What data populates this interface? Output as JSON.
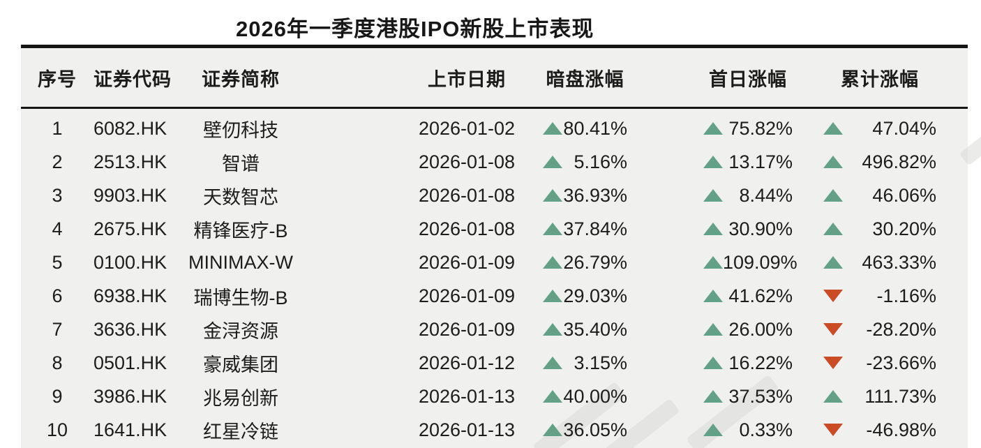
{
  "title": "2026年一季度港股IPO新股上市表现",
  "chart_data": {
    "type": "table",
    "title": "2026年一季度港股IPO新股上市表现",
    "columns": [
      "序号",
      "证券代码",
      "证券简称",
      "上市日期",
      "暗盘涨幅",
      "首日涨幅",
      "累计涨幅"
    ],
    "rows": [
      {
        "no": "1",
        "code": "6082.HK",
        "name": "壁仞科技",
        "date": "2026-01-02",
        "dark_gain": "80.41%",
        "first_day_gain": "75.82%",
        "cumulative_gain": "47.04%"
      },
      {
        "no": "2",
        "code": "2513.HK",
        "name": "智谱",
        "date": "2026-01-08",
        "dark_gain": "5.16%",
        "first_day_gain": "13.17%",
        "cumulative_gain": "496.82%"
      },
      {
        "no": "3",
        "code": "9903.HK",
        "name": "天数智芯",
        "date": "2026-01-08",
        "dark_gain": "36.93%",
        "first_day_gain": "8.44%",
        "cumulative_gain": "46.06%"
      },
      {
        "no": "4",
        "code": "2675.HK",
        "name": "精锋医疗-B",
        "date": "2026-01-08",
        "dark_gain": "37.84%",
        "first_day_gain": "30.90%",
        "cumulative_gain": "30.20%"
      },
      {
        "no": "5",
        "code": "0100.HK",
        "name": "MINIMAX-W",
        "date": "2026-01-09",
        "dark_gain": "26.79%",
        "first_day_gain": "109.09%",
        "cumulative_gain": "463.33%"
      },
      {
        "no": "6",
        "code": "6938.HK",
        "name": "瑞博生物-B",
        "date": "2026-01-09",
        "dark_gain": "29.03%",
        "first_day_gain": "41.62%",
        "cumulative_gain": "-1.16%"
      },
      {
        "no": "7",
        "code": "3636.HK",
        "name": "金浔资源",
        "date": "2026-01-09",
        "dark_gain": "35.40%",
        "first_day_gain": "26.00%",
        "cumulative_gain": "-28.20%"
      },
      {
        "no": "8",
        "code": "0501.HK",
        "name": "豪威集团",
        "date": "2026-01-12",
        "dark_gain": "3.15%",
        "first_day_gain": "16.22%",
        "cumulative_gain": "-23.66%"
      },
      {
        "no": "9",
        "code": "3986.HK",
        "name": "兆易创新",
        "date": "2026-01-13",
        "dark_gain": "40.00%",
        "first_day_gain": "37.53%",
        "cumulative_gain": "111.73%"
      },
      {
        "no": "10",
        "code": "1641.HK",
        "name": "红星冷链",
        "date": "2026-01-13",
        "dark_gain": "36.05%",
        "first_day_gain": "0.33%",
        "cumulative_gain": "-46.98%"
      }
    ]
  },
  "colors": {
    "up_green": "#62a185",
    "down_red": "#cb4b26",
    "table_background": "#f0f0ee",
    "rule_black": "#161616",
    "text": "#1c1c1c"
  },
  "icons": {
    "up": "up-triangle-icon",
    "down": "down-triangle-icon"
  }
}
